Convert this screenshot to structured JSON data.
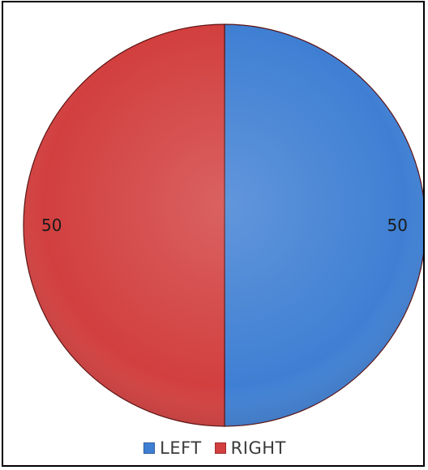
{
  "chart_data": {
    "type": "pie",
    "categories": [
      "LEFT",
      "RIGHT"
    ],
    "values": [
      50,
      50
    ],
    "colors": [
      "#3f7fd3",
      "#d23f3f"
    ],
    "data_labels": [
      "50",
      "50"
    ],
    "legend": {
      "position": "bottom",
      "entries": [
        "LEFT",
        "RIGHT"
      ]
    }
  }
}
